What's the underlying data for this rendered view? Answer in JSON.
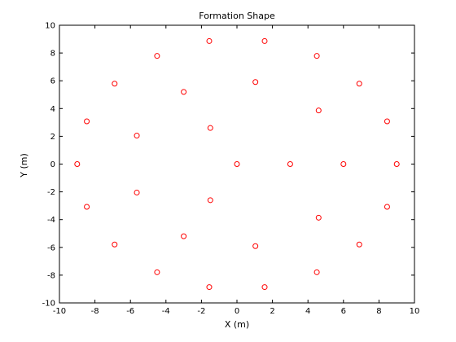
{
  "chart_data": {
    "type": "scatter",
    "title": "Formation Shape",
    "xlabel": "X (m)",
    "ylabel": "Y (m)",
    "xlim": [
      -10,
      10
    ],
    "ylim": [
      -10,
      10
    ],
    "xticks": [
      "-10",
      "-8",
      "-6",
      "-4",
      "-2",
      "0",
      "2",
      "4",
      "6",
      "8",
      "10"
    ],
    "yticks": [
      "-10",
      "-8",
      "-6",
      "-4",
      "-2",
      "0",
      "2",
      "4",
      "6",
      "8",
      "10"
    ],
    "grid": false,
    "marker": "circle",
    "color": "#ff0000",
    "points": [
      [
        0,
        0
      ],
      [
        3,
        0
      ],
      [
        6,
        0
      ],
      [
        9,
        0
      ],
      [
        1.04,
        5.91
      ],
      [
        -1.5,
        2.6
      ],
      [
        -1.5,
        -2.6
      ],
      [
        1.04,
        -5.91
      ],
      [
        4.6,
        3.86
      ],
      [
        4.6,
        -3.86
      ],
      [
        -3.0,
        5.2
      ],
      [
        -3.0,
        -5.2
      ],
      [
        -5.64,
        2.05
      ],
      [
        -5.64,
        -2.05
      ],
      [
        -1.56,
        8.86
      ],
      [
        1.56,
        8.86
      ],
      [
        -1.56,
        -8.86
      ],
      [
        1.56,
        -8.86
      ],
      [
        4.5,
        7.79
      ],
      [
        4.5,
        -7.79
      ],
      [
        -4.5,
        7.79
      ],
      [
        -4.5,
        -7.79
      ],
      [
        6.89,
        5.79
      ],
      [
        6.89,
        -5.79
      ],
      [
        -6.89,
        5.79
      ],
      [
        -6.89,
        -5.79
      ],
      [
        8.46,
        3.08
      ],
      [
        8.46,
        -3.08
      ],
      [
        -8.46,
        3.08
      ],
      [
        -8.46,
        -3.08
      ],
      [
        -9,
        0
      ]
    ]
  }
}
